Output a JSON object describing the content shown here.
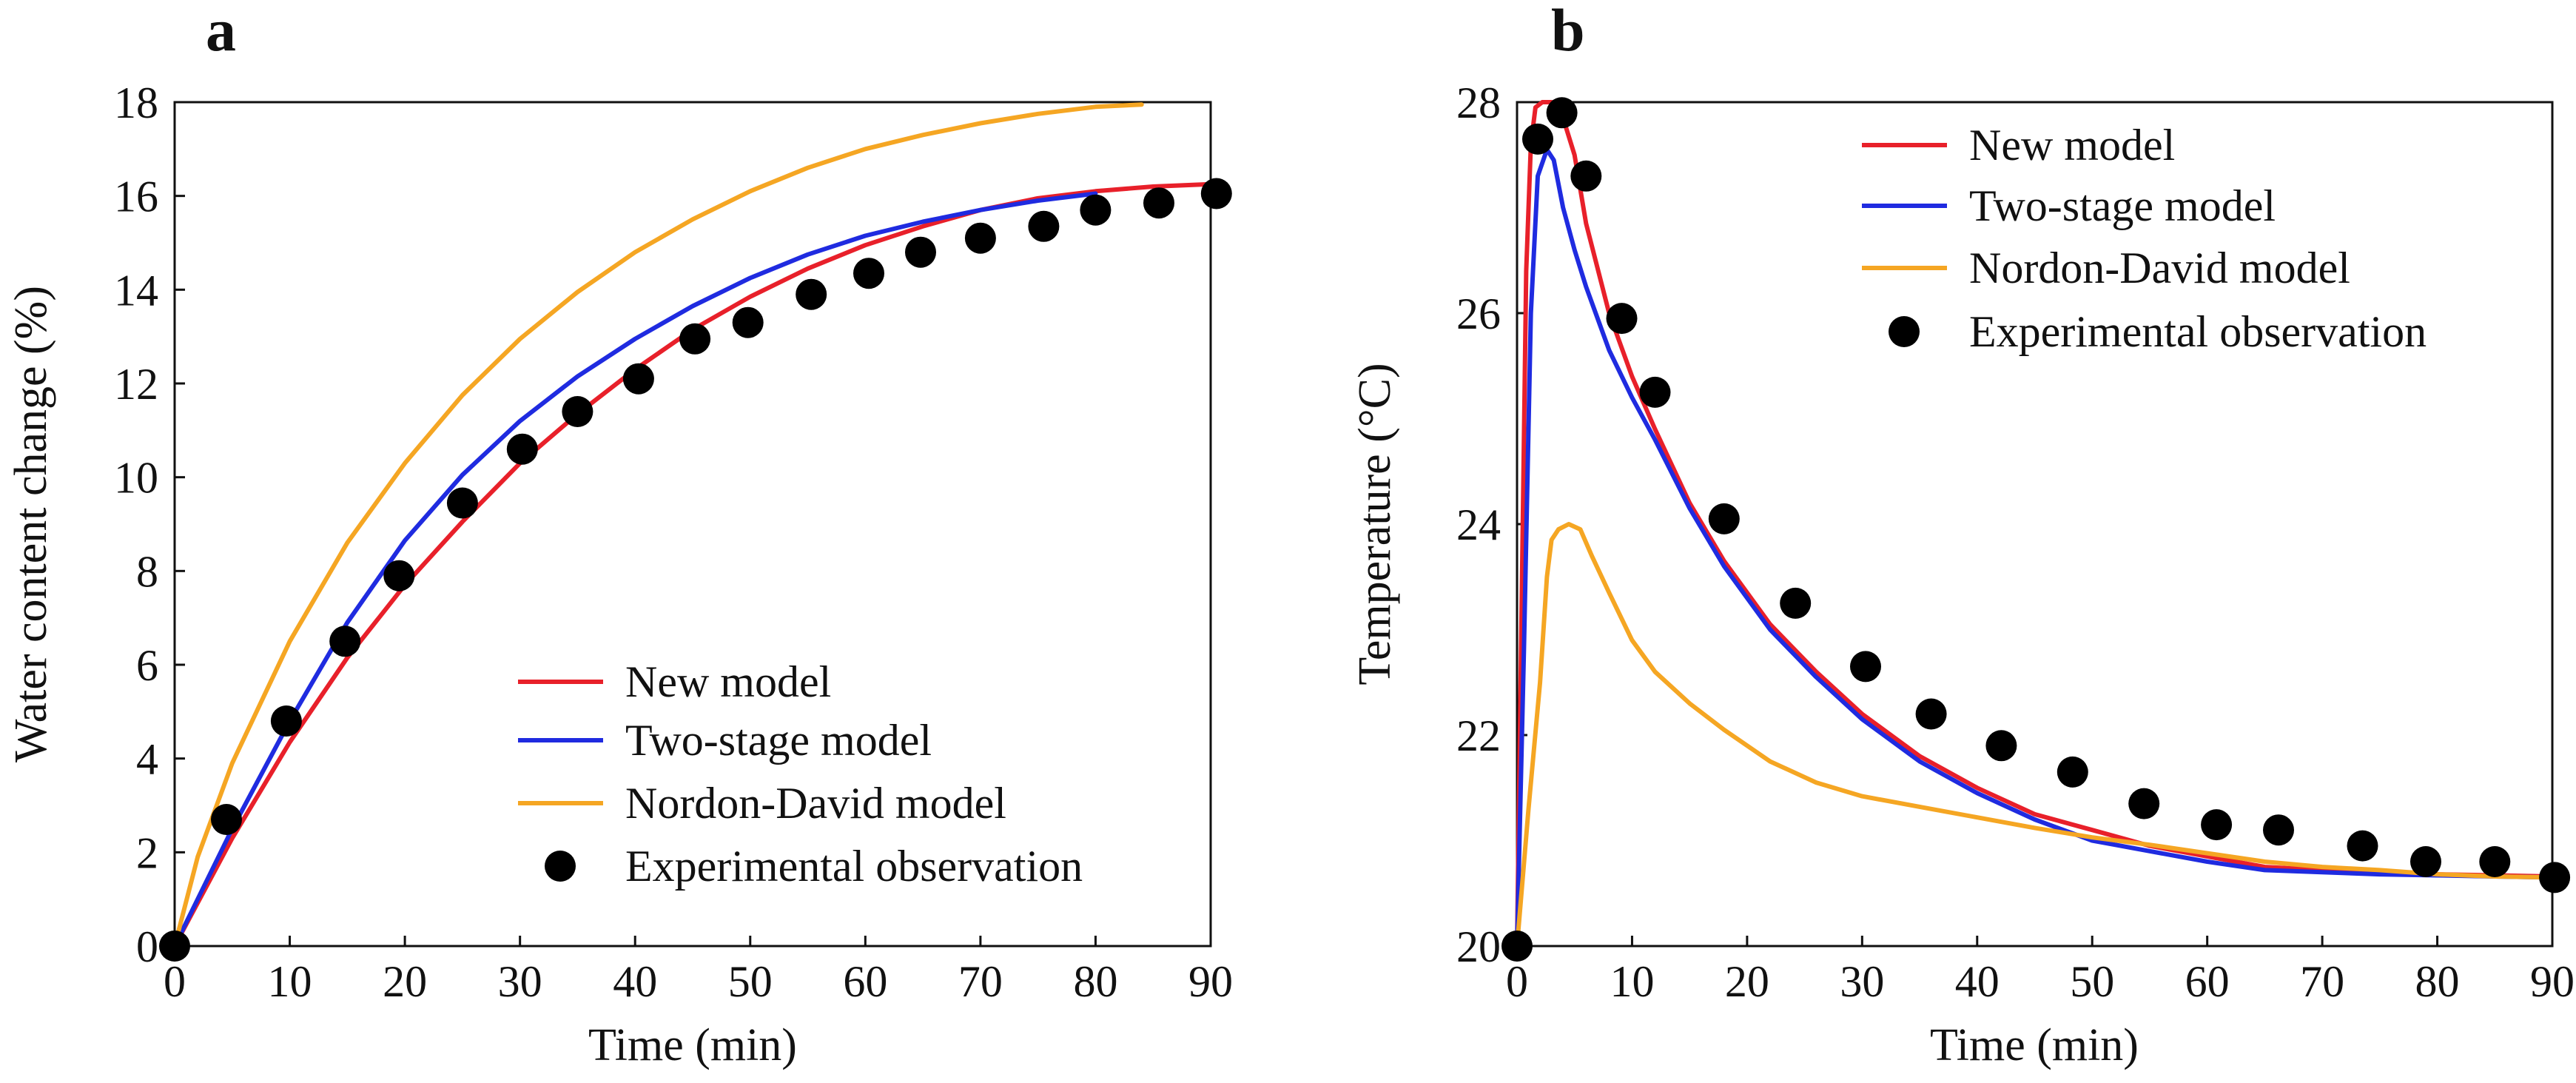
{
  "chart_data": [
    {
      "type": "line",
      "panel_label": "a",
      "title": "",
      "xlabel": "Time (min)",
      "ylabel": "Water content change (%)",
      "xlim": [
        0,
        90
      ],
      "ylim": [
        0,
        18
      ],
      "xticks": [
        0,
        10,
        20,
        30,
        40,
        50,
        60,
        70,
        80,
        90
      ],
      "yticks": [
        0,
        2,
        4,
        6,
        8,
        10,
        12,
        14,
        16,
        18
      ],
      "grid": false,
      "legend_position": "bottom-right",
      "series": [
        {
          "name": "New model",
          "kind": "line",
          "color": "#e8202a",
          "x": [
            0,
            5,
            10,
            15,
            20,
            25,
            30,
            35,
            40,
            45,
            50,
            55,
            60,
            65,
            70,
            75,
            80,
            85,
            90
          ],
          "y": [
            0,
            2.3,
            4.35,
            6.15,
            7.7,
            9.05,
            10.3,
            11.35,
            12.3,
            13.15,
            13.85,
            14.45,
            14.95,
            15.35,
            15.7,
            15.95,
            16.1,
            16.2,
            16.25
          ]
        },
        {
          "name": "Two-stage model",
          "kind": "line",
          "color": "#1f2be0",
          "x": [
            0,
            5,
            10,
            15,
            20,
            25,
            30,
            35,
            40,
            45,
            50,
            55,
            60,
            65,
            70,
            75,
            80
          ],
          "y": [
            0,
            2.5,
            4.8,
            6.9,
            8.65,
            10.05,
            11.2,
            12.15,
            12.95,
            13.65,
            14.25,
            14.75,
            15.15,
            15.45,
            15.7,
            15.9,
            16.05
          ]
        },
        {
          "name": "Nordon-David model",
          "kind": "line",
          "color": "#f5a623",
          "x": [
            0,
            2,
            5,
            10,
            15,
            20,
            25,
            30,
            35,
            40,
            45,
            50,
            55,
            60,
            65,
            70,
            75,
            80,
            84
          ],
          "y": [
            0,
            1.9,
            3.9,
            6.5,
            8.6,
            10.3,
            11.75,
            12.95,
            13.95,
            14.8,
            15.5,
            16.1,
            16.6,
            17.0,
            17.3,
            17.55,
            17.75,
            17.9,
            17.95
          ]
        },
        {
          "name": "Experimental observation",
          "kind": "scatter",
          "color": "#000000",
          "x": [
            0,
            4.5,
            9.7,
            14.8,
            19.5,
            25,
            30.2,
            35,
            40.3,
            45.2,
            49.8,
            55.3,
            60.3,
            64.8,
            70,
            75.5,
            80,
            85.5,
            90.5
          ],
          "y": [
            0,
            2.7,
            4.8,
            6.5,
            7.9,
            9.45,
            10.6,
            11.4,
            12.1,
            12.95,
            13.3,
            13.9,
            14.35,
            14.8,
            15.1,
            15.35,
            15.7,
            15.85,
            16.05
          ]
        }
      ]
    },
    {
      "type": "line",
      "panel_label": "b",
      "title": "",
      "xlabel": "Time (min)",
      "ylabel": "Temperature (°C)",
      "xlim": [
        0,
        90
      ],
      "ylim": [
        20,
        28
      ],
      "xticks": [
        0,
        10,
        20,
        30,
        40,
        50,
        60,
        70,
        80,
        90
      ],
      "yticks": [
        20,
        22,
        24,
        26,
        28
      ],
      "grid": false,
      "legend_position": "top-right",
      "series": [
        {
          "name": "New model",
          "kind": "line",
          "color": "#e8202a",
          "x": [
            0,
            0.4,
            0.8,
            1.2,
            1.6,
            2.2,
            3,
            4,
            5,
            6,
            8,
            10,
            12,
            15,
            18,
            22,
            26,
            30,
            35,
            40,
            45,
            50,
            55,
            60,
            65,
            70,
            75,
            80,
            85,
            90
          ],
          "y": [
            20,
            23.2,
            26.4,
            27.6,
            27.95,
            28,
            28,
            27.85,
            27.5,
            26.85,
            26.0,
            25.4,
            24.9,
            24.2,
            23.65,
            23.05,
            22.6,
            22.2,
            21.8,
            21.5,
            21.25,
            21.1,
            20.95,
            20.85,
            20.75,
            20.72,
            20.7,
            20.68,
            20.67,
            20.66
          ]
        },
        {
          "name": "Two-stage model",
          "kind": "line",
          "color": "#1f2be0",
          "x": [
            0,
            0.6,
            1.2,
            1.8,
            2.6,
            3.2,
            4,
            5,
            6,
            8,
            10,
            12,
            15,
            18,
            22,
            26,
            30,
            35,
            40,
            45,
            50,
            55,
            60,
            65,
            70,
            75,
            80,
            85,
            90
          ],
          "y": [
            20,
            22.8,
            26.0,
            27.3,
            27.55,
            27.45,
            27.0,
            26.6,
            26.25,
            25.65,
            25.2,
            24.8,
            24.15,
            23.6,
            23.0,
            22.55,
            22.15,
            21.75,
            21.45,
            21.2,
            21.0,
            20.9,
            20.8,
            20.72,
            20.7,
            20.68,
            20.67,
            20.66,
            20.65
          ]
        },
        {
          "name": "Nordon-David model",
          "kind": "line",
          "color": "#f5a623",
          "x": [
            0,
            1,
            2,
            2.6,
            3,
            3.6,
            4.5,
            5.5,
            6.5,
            8,
            10,
            12,
            15,
            18,
            22,
            26,
            30,
            35,
            40,
            45,
            50,
            55,
            60,
            65,
            70,
            75,
            80,
            85,
            90
          ],
          "y": [
            20,
            21.3,
            22.5,
            23.5,
            23.85,
            23.95,
            24.0,
            23.95,
            23.7,
            23.35,
            22.9,
            22.6,
            22.3,
            22.05,
            21.75,
            21.55,
            21.42,
            21.32,
            21.22,
            21.12,
            21.03,
            20.96,
            20.88,
            20.8,
            20.75,
            20.72,
            20.68,
            20.66,
            20.65
          ]
        },
        {
          "name": "Experimental observation",
          "kind": "scatter",
          "color": "#000000",
          "x": [
            0,
            1.8,
            3.9,
            6,
            9.1,
            12,
            18,
            24.2,
            30.3,
            36,
            42.1,
            48.3,
            54.5,
            60.8,
            66.2,
            73.5,
            79,
            85,
            90.2
          ],
          "y": [
            20,
            27.65,
            27.9,
            27.3,
            25.95,
            25.25,
            24.05,
            23.25,
            22.65,
            22.2,
            21.9,
            21.65,
            21.35,
            21.15,
            21.1,
            20.95,
            20.8,
            20.8,
            20.65
          ]
        }
      ]
    }
  ]
}
